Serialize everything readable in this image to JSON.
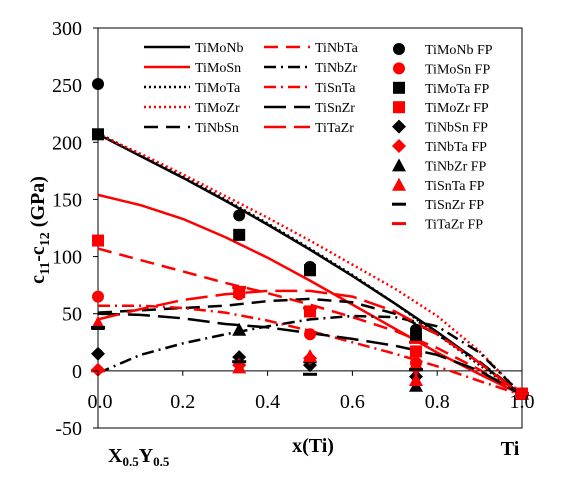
{
  "chart_data": {
    "type": "line",
    "ylabel": "c11-c12 (GPa)",
    "ylabel_main": "c",
    "ylabel_sub1": "11",
    "ylabel_dash": "-c",
    "ylabel_sub2": "12",
    "ylabel_unit": " (GPa)",
    "xlabel": "x(Ti)",
    "x_left_label_X": "X",
    "x_left_label_Xsub": "0.5",
    "x_left_label_Y": "Y",
    "x_left_label_Ysub": "0.5",
    "x_right_label": "Ti",
    "xlim": [
      0,
      1
    ],
    "ylim": [
      -50,
      300
    ],
    "x_ticks": [
      0,
      0.2,
      0.4,
      0.6,
      0.8,
      1
    ],
    "x_tick_labels": [
      "0.0",
      "0.2",
      "0.4",
      "0.6",
      "0.8",
      "1.0"
    ],
    "y_ticks": [
      -50,
      0,
      50,
      100,
      150,
      200,
      250,
      300
    ],
    "y_tick_labels": [
      "-50",
      "0",
      "50",
      "100",
      "150",
      "200",
      "250",
      "300"
    ],
    "grid": false,
    "legend_position": "top-right",
    "series": [
      {
        "name": "TiMoNb",
        "color": "#000000",
        "dash": "solid",
        "x": [
          0,
          0.1,
          0.2,
          0.3,
          0.4,
          0.5,
          0.6,
          0.7,
          0.8,
          0.9,
          1.0
        ],
        "y": [
          207,
          188,
          169,
          149,
          128,
          106,
          83,
          59,
          34,
          7,
          -21
        ]
      },
      {
        "name": "TiMoSn",
        "color": "#ff0000",
        "dash": "solid",
        "x": [
          0,
          0.1,
          0.2,
          0.3,
          0.4,
          0.5,
          0.6,
          0.7,
          0.8,
          0.9,
          1.0
        ],
        "y": [
          154,
          145,
          133,
          117,
          99,
          79,
          58,
          37,
          16,
          -3,
          -21
        ]
      },
      {
        "name": "TiMoTa",
        "color": "#000000",
        "dash": "dot",
        "x": [
          0,
          0.1,
          0.2,
          0.3,
          0.4,
          0.5,
          0.6,
          0.7,
          0.8,
          0.9,
          1.0
        ],
        "y": [
          208,
          189,
          170,
          150,
          129,
          107,
          84,
          59,
          32,
          5,
          -21
        ]
      },
      {
        "name": "TiMoZr",
        "color": "#ff0000",
        "dash": "dot",
        "x": [
          0,
          0.1,
          0.2,
          0.3,
          0.4,
          0.5,
          0.6,
          0.7,
          0.8,
          0.9,
          1.0
        ],
        "y": [
          207,
          190,
          172,
          153,
          134,
          114,
          93,
          72,
          48,
          17,
          -21
        ]
      },
      {
        "name": "TiNbSn",
        "color": "#000000",
        "dash": "dash",
        "x": [
          0,
          0.1,
          0.2,
          0.3,
          0.4,
          0.5,
          0.6,
          0.7,
          0.8,
          0.9,
          1.0
        ],
        "y": [
          51,
          53,
          55,
          57,
          61,
          63,
          60,
          50,
          32,
          8,
          -21
        ]
      },
      {
        "name": "TiNbTa",
        "color": "#ff0000",
        "dash": "dash",
        "x": [
          0,
          0.1,
          0.2,
          0.3,
          0.4,
          0.5,
          0.6,
          0.7,
          0.8,
          0.9,
          1.0
        ],
        "y": [
          107,
          97,
          87,
          77,
          68,
          58,
          47,
          35,
          20,
          1,
          -21
        ]
      },
      {
        "name": "TiNbZr",
        "color": "#000000",
        "dash": "dashdot",
        "x": [
          0,
          0.1,
          0.2,
          0.3,
          0.4,
          0.5,
          0.6,
          0.7,
          0.8,
          0.9,
          1.0
        ],
        "y": [
          -2,
          14,
          24,
          32,
          39,
          45,
          48,
          47,
          39,
          16,
          -21
        ]
      },
      {
        "name": "TiSnTa",
        "color": "#ff0000",
        "dash": "dashdot",
        "x": [
          0,
          0.1,
          0.2,
          0.3,
          0.4,
          0.5,
          0.6,
          0.7,
          0.8,
          0.9,
          1.0
        ],
        "y": [
          57,
          57,
          55,
          51,
          44,
          35,
          25,
          15,
          4,
          -9,
          -21
        ]
      },
      {
        "name": "TiSnZr",
        "color": "#000000",
        "dash": "longdash",
        "x": [
          0,
          0.1,
          0.2,
          0.3,
          0.4,
          0.5,
          0.6,
          0.7,
          0.8,
          0.9,
          1.0
        ],
        "y": [
          50,
          49,
          46,
          41,
          38,
          33,
          28,
          22,
          14,
          0,
          -21
        ]
      },
      {
        "name": "TiTaZr",
        "color": "#ff0000",
        "dash": "longdash",
        "x": [
          0,
          0.1,
          0.2,
          0.3,
          0.4,
          0.5,
          0.6,
          0.7,
          0.8,
          0.9,
          1.0
        ],
        "y": [
          45,
          54,
          62,
          67,
          70,
          70,
          65,
          52,
          32,
          7,
          -21
        ]
      }
    ],
    "fp_series": [
      {
        "name": "TiMoNb FP",
        "color": "#000000",
        "marker": "circle",
        "x": [
          0,
          0.333,
          0.5,
          0.75,
          1.0
        ],
        "y": [
          251,
          136,
          91,
          36,
          -20
        ]
      },
      {
        "name": "TiMoSn FP",
        "color": "#ff0000",
        "marker": "circle",
        "x": [
          0,
          0.333,
          0.5,
          0.75,
          1.0
        ],
        "y": [
          65,
          67,
          32,
          7,
          -20
        ]
      },
      {
        "name": "TiMoTa FP",
        "color": "#000000",
        "marker": "square",
        "x": [
          0,
          0.333,
          0.5,
          0.75,
          1.0
        ],
        "y": [
          207,
          119,
          88,
          29,
          -20
        ]
      },
      {
        "name": "TiMoZr FP",
        "color": "#ff0000",
        "marker": "square",
        "x": [
          0,
          0.333,
          0.5,
          0.75,
          1.0
        ],
        "y": [
          114,
          69,
          52,
          17,
          -20
        ]
      },
      {
        "name": "TiNbSn FP",
        "color": "#000000",
        "marker": "diamond",
        "x": [
          0,
          0.333,
          0.5,
          0.75,
          1.0
        ],
        "y": [
          15,
          12,
          5,
          -5,
          -20
        ]
      },
      {
        "name": "TiNbTa FP",
        "color": "#ff0000",
        "marker": "diamond",
        "x": [
          0,
          0.333,
          0.5,
          0.75,
          1.0
        ],
        "y": [
          1,
          5,
          11,
          2,
          -20
        ]
      },
      {
        "name": "TiNbZr FP",
        "color": "#000000",
        "marker": "triangle",
        "x": [
          0,
          0.333,
          0.5,
          0.75,
          1.0
        ],
        "y": [
          41,
          36,
          12,
          -13,
          -20
        ]
      },
      {
        "name": "TiSnTa FP",
        "color": "#ff0000",
        "marker": "triangle",
        "x": [
          0,
          0.333,
          0.5,
          0.75,
          1.0
        ],
        "y": [
          42,
          3,
          13,
          -8,
          -20
        ]
      },
      {
        "name": "TiSnZr FP",
        "color": "#000000",
        "marker": "dash",
        "x": [
          0,
          0.333,
          0.5,
          0.75,
          1.0
        ],
        "y": [
          38,
          8,
          -3,
          1,
          -20
        ]
      },
      {
        "name": "TiTaZr FP",
        "color": "#ff0000",
        "marker": "dash",
        "x": [
          0,
          0.333,
          0.5,
          0.75,
          1.0
        ],
        "y": [
          0,
          73,
          55,
          25,
          -20
        ]
      }
    ]
  }
}
